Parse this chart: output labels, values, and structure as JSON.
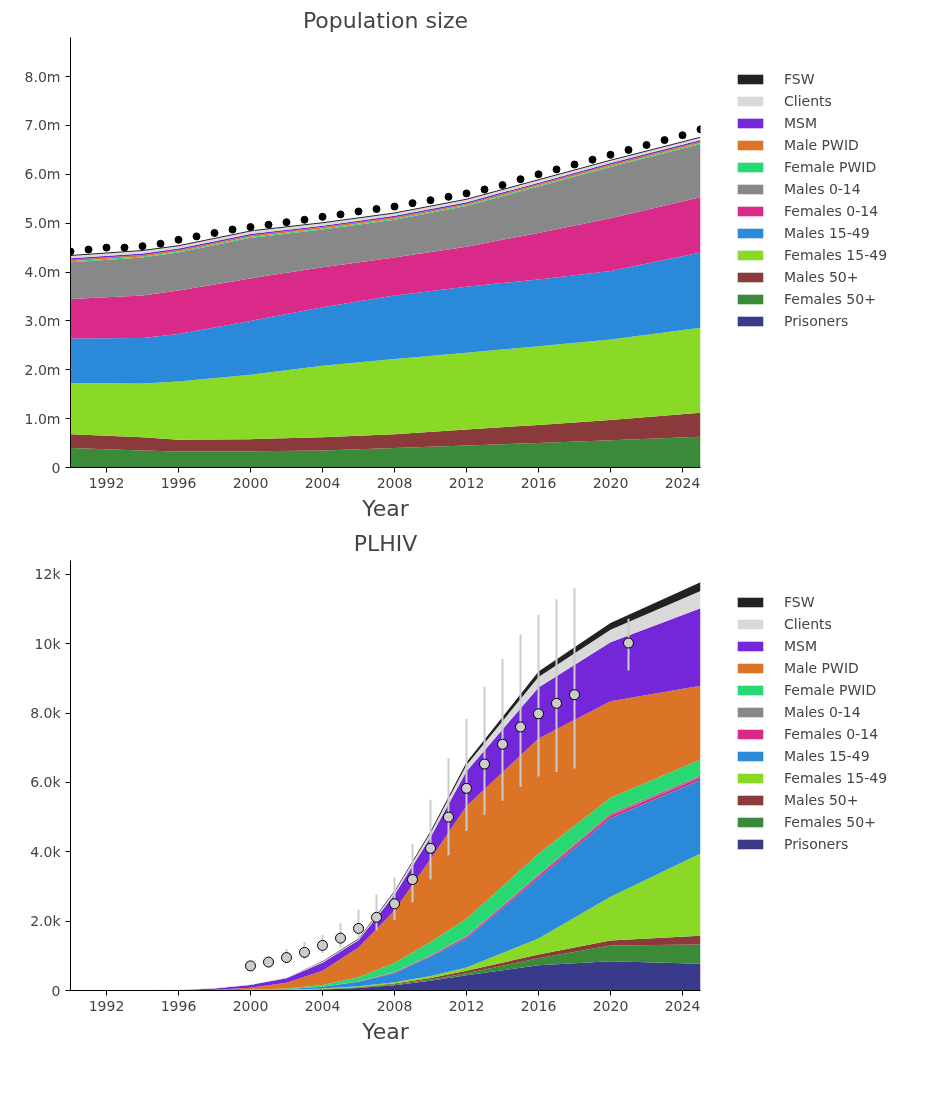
{
  "chart_data": [
    {
      "type": "area",
      "title": "Population size",
      "xlabel": "Year",
      "stacked": true,
      "legend": "right",
      "grid": false,
      "x": [
        1990,
        1994,
        1996,
        2000,
        2004,
        2008,
        2012,
        2016,
        2020,
        2025
      ],
      "xlim": [
        1990,
        2025
      ],
      "xticks": [
        1992,
        1996,
        2000,
        2004,
        2008,
        2012,
        2016,
        2020,
        2024
      ],
      "ylim": [
        0,
        8.8
      ],
      "yticks": [
        0,
        {
          "value": 1,
          "label": "1.0m"
        },
        {
          "value": 2,
          "label": "2.0m"
        },
        {
          "value": 3,
          "label": "3.0m"
        },
        {
          "value": 4,
          "label": "4.0m"
        },
        {
          "value": 5,
          "label": "5.0m"
        },
        {
          "value": 6,
          "label": "6.0m"
        },
        {
          "value": 7,
          "label": "7.0m"
        },
        {
          "value": 8,
          "label": "8.0m"
        }
      ],
      "series": [
        {
          "name": "Prisoners",
          "color": "#3a3a8a",
          "values": [
            0.01,
            0.01,
            0.01,
            0.01,
            0.01,
            0.01,
            0.01,
            0.01,
            0.01,
            0.01
          ]
        },
        {
          "name": "Females 50+",
          "color": "#3a8a3a",
          "values": [
            0.39,
            0.34,
            0.32,
            0.32,
            0.34,
            0.39,
            0.44,
            0.49,
            0.55,
            0.62
          ]
        },
        {
          "name": "Males 50+",
          "color": "#8a3a3a",
          "values": [
            0.28,
            0.27,
            0.24,
            0.25,
            0.27,
            0.28,
            0.33,
            0.37,
            0.41,
            0.49
          ]
        },
        {
          "name": "Females 15-49",
          "color": "#8ad927",
          "values": [
            1.05,
            1.1,
            1.19,
            1.32,
            1.46,
            1.54,
            1.57,
            1.61,
            1.65,
            1.74
          ]
        },
        {
          "name": "Males 15-49",
          "color": "#2a8ad9",
          "values": [
            0.91,
            0.93,
            0.97,
            1.1,
            1.2,
            1.3,
            1.35,
            1.37,
            1.4,
            1.54
          ]
        },
        {
          "name": "Females 0-14",
          "color": "#d92a8a",
          "values": [
            0.81,
            0.87,
            0.89,
            0.87,
            0.82,
            0.78,
            0.82,
            0.95,
            1.08,
            1.13
          ]
        },
        {
          "name": "Males 0-14",
          "color": "#888888",
          "values": [
            0.75,
            0.78,
            0.78,
            0.83,
            0.77,
            0.77,
            0.83,
            0.95,
            1.05,
            1.09
          ]
        },
        {
          "name": "Female PWID",
          "color": "#27d873",
          "values": [
            0.02,
            0.02,
            0.02,
            0.02,
            0.02,
            0.02,
            0.02,
            0.02,
            0.02,
            0.02
          ]
        },
        {
          "name": "Male PWID",
          "color": "#dc7427",
          "values": [
            0.03,
            0.03,
            0.03,
            0.03,
            0.03,
            0.03,
            0.03,
            0.03,
            0.03,
            0.03
          ]
        },
        {
          "name": "MSM",
          "color": "#7327d9",
          "values": [
            0.03,
            0.03,
            0.03,
            0.03,
            0.03,
            0.03,
            0.03,
            0.03,
            0.03,
            0.03
          ]
        },
        {
          "name": "Clients",
          "color": "#d9d9d9",
          "values": [
            0.05,
            0.05,
            0.05,
            0.05,
            0.05,
            0.05,
            0.05,
            0.05,
            0.05,
            0.05
          ]
        },
        {
          "name": "FSW",
          "color": "#222222",
          "values": [
            0.02,
            0.02,
            0.02,
            0.02,
            0.02,
            0.02,
            0.02,
            0.02,
            0.02,
            0.02
          ]
        },
        {
          "type": "scatter",
          "marker": "circle",
          "color": "#000000",
          "x": [
            1990,
            1991,
            1992,
            1993,
            1994,
            1995,
            1996,
            1997,
            1998,
            1999,
            2000,
            2001,
            2002,
            2003,
            2004,
            2005,
            2006,
            2007,
            2008,
            2009,
            2010,
            2011,
            2012,
            2013,
            2014,
            2015,
            2016,
            2017,
            2018,
            2019,
            2020,
            2021,
            2022,
            2023,
            2024,
            2025
          ],
          "values": [
            4.42,
            4.46,
            4.5,
            4.5,
            4.53,
            4.58,
            4.66,
            4.73,
            4.8,
            4.87,
            4.92,
            4.97,
            5.02,
            5.07,
            5.13,
            5.18,
            5.24,
            5.29,
            5.34,
            5.41,
            5.47,
            5.54,
            5.61,
            5.69,
            5.78,
            5.9,
            6.0,
            6.1,
            6.2,
            6.3,
            6.4,
            6.5,
            6.6,
            6.7,
            6.8,
            6.92
          ]
        }
      ]
    },
    {
      "type": "area",
      "title": "PLHIV",
      "xlabel": "Year",
      "stacked": true,
      "legend": "right",
      "grid": false,
      "x": [
        1990,
        1996,
        1998,
        2000,
        2002,
        2004,
        2006,
        2008,
        2010,
        2012,
        2016,
        2020,
        2025
      ],
      "xlim": [
        1990,
        2025
      ],
      "xticks": [
        1992,
        1996,
        2000,
        2004,
        2008,
        2012,
        2016,
        2020,
        2024
      ],
      "ylim": [
        0,
        12.4
      ],
      "yticks": [
        0,
        {
          "value": 2,
          "label": "2.0k"
        },
        {
          "value": 4,
          "label": "4.0k"
        },
        {
          "value": 6,
          "label": "6.0k"
        },
        {
          "value": 8,
          "label": "8.0k"
        },
        {
          "value": 10,
          "label": "10k"
        },
        {
          "value": 12,
          "label": "12k"
        }
      ],
      "series": [
        {
          "name": "Prisoners",
          "color": "#3a3a8a",
          "values": [
            0,
            0,
            0,
            0,
            0.01,
            0.03,
            0.07,
            0.15,
            0.28,
            0.44,
            0.73,
            0.84,
            0.77
          ]
        },
        {
          "name": "Females 50+",
          "color": "#3a8a3a",
          "values": [
            0,
            0,
            0,
            0,
            0,
            0.01,
            0.02,
            0.03,
            0.04,
            0.06,
            0.2,
            0.46,
            0.56
          ]
        },
        {
          "name": "Males 50+",
          "color": "#8a3a3a",
          "values": [
            0,
            0,
            0,
            0,
            0,
            0,
            0.01,
            0.02,
            0.04,
            0.07,
            0.11,
            0.14,
            0.25
          ]
        },
        {
          "name": "Females 15-49",
          "color": "#8ad927",
          "values": [
            0,
            0,
            0,
            0.01,
            0.01,
            0.02,
            0.02,
            0.04,
            0.06,
            0.09,
            0.46,
            1.26,
            2.37
          ]
        },
        {
          "name": "Males 15-49",
          "color": "#2a8ad9",
          "values": [
            0,
            0,
            0,
            0,
            0.02,
            0.05,
            0.13,
            0.26,
            0.55,
            0.84,
            1.74,
            2.27,
            2.12
          ]
        },
        {
          "name": "Females 0-14",
          "color": "#d92a8a",
          "values": [
            0,
            0,
            0,
            0,
            0,
            0,
            0.01,
            0.02,
            0.03,
            0.04,
            0.06,
            0.08,
            0.08
          ]
        },
        {
          "name": "Males 0-14",
          "color": "#888888",
          "values": [
            0,
            0,
            0,
            0,
            0,
            0,
            0,
            0.01,
            0.02,
            0.03,
            0.05,
            0.06,
            0.06
          ]
        },
        {
          "name": "Female PWID",
          "color": "#27d873",
          "values": [
            0,
            0,
            0,
            0.01,
            0.02,
            0.05,
            0.12,
            0.26,
            0.38,
            0.5,
            0.59,
            0.45,
            0.45
          ]
        },
        {
          "name": "Male PWID",
          "color": "#dc7427",
          "values": [
            0,
            0,
            0.02,
            0.06,
            0.16,
            0.41,
            0.86,
            1.52,
            2.39,
            3.25,
            3.33,
            2.78,
            2.13
          ]
        },
        {
          "name": "MSM",
          "color": "#7327d9",
          "values": [
            0,
            0.01,
            0.04,
            0.08,
            0.13,
            0.23,
            0.21,
            0.45,
            0.63,
            1.0,
            1.47,
            1.7,
            2.23
          ]
        },
        {
          "name": "Clients",
          "color": "#d9d9d9",
          "values": [
            0,
            0.01,
            0.01,
            0.01,
            0.02,
            0.03,
            0.03,
            0.08,
            0.12,
            0.18,
            0.3,
            0.36,
            0.5
          ]
        },
        {
          "name": "FSW",
          "color": "#222222",
          "values": [
            0,
            0,
            0,
            0,
            0,
            0.01,
            0.02,
            0.03,
            0.05,
            0.08,
            0.16,
            0.2,
            0.25
          ]
        },
        {
          "type": "scatter",
          "marker": "circle",
          "color": "#cccccc",
          "x": [
            2000,
            2001,
            2002,
            2003,
            2004,
            2005,
            2006,
            2007,
            2008,
            2009,
            2010,
            2011,
            2012,
            2013,
            2014,
            2015,
            2016,
            2017,
            2018,
            2021
          ],
          "values": [
            0.71,
            0.82,
            0.95,
            1.1,
            1.3,
            1.51,
            1.79,
            2.11,
            2.5,
            3.2,
            4.1,
            5.0,
            5.83,
            6.53,
            7.1,
            7.6,
            7.98,
            8.28,
            8.53,
            10.02
          ],
          "errors": [
            null,
            [
              0.67,
              0.97
            ],
            [
              0.8,
              1.2
            ],
            [
              0.9,
              1.4
            ],
            [
              1.08,
              1.6
            ],
            [
              1.24,
              1.94
            ],
            [
              1.48,
              2.33
            ],
            [
              1.74,
              2.77
            ],
            [
              2.04,
              3.26
            ],
            [
              2.54,
              4.23
            ],
            [
              3.2,
              5.5
            ],
            [
              3.9,
              6.7
            ],
            [
              4.6,
              7.83
            ],
            [
              5.07,
              8.76
            ],
            [
              5.47,
              9.56
            ],
            [
              5.87,
              10.27
            ],
            [
              6.17,
              10.83
            ],
            [
              6.3,
              11.28
            ],
            [
              6.4,
              11.6
            ],
            [
              9.23,
              10.72
            ]
          ]
        }
      ]
    }
  ]
}
